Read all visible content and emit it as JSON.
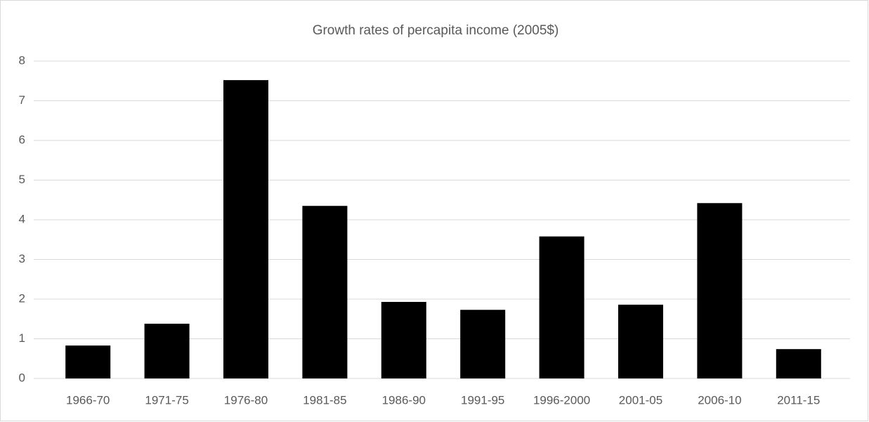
{
  "chart_data": {
    "type": "bar",
    "title": "Growth rates of percapita income (2005$)",
    "categories": [
      "1966-70",
      "1971-75",
      "1976-80",
      "1981-85",
      "1986-90",
      "1991-95",
      "1996-2000",
      "2001-05",
      "2006-10",
      "2011-15"
    ],
    "values": [
      0.83,
      1.38,
      7.52,
      4.35,
      1.93,
      1.73,
      3.58,
      1.86,
      4.42,
      0.74
    ],
    "color": "#000000",
    "ylim": [
      0,
      8
    ],
    "yticks": [
      0,
      1,
      2,
      3,
      4,
      5,
      6,
      7,
      8
    ],
    "grid": true
  }
}
